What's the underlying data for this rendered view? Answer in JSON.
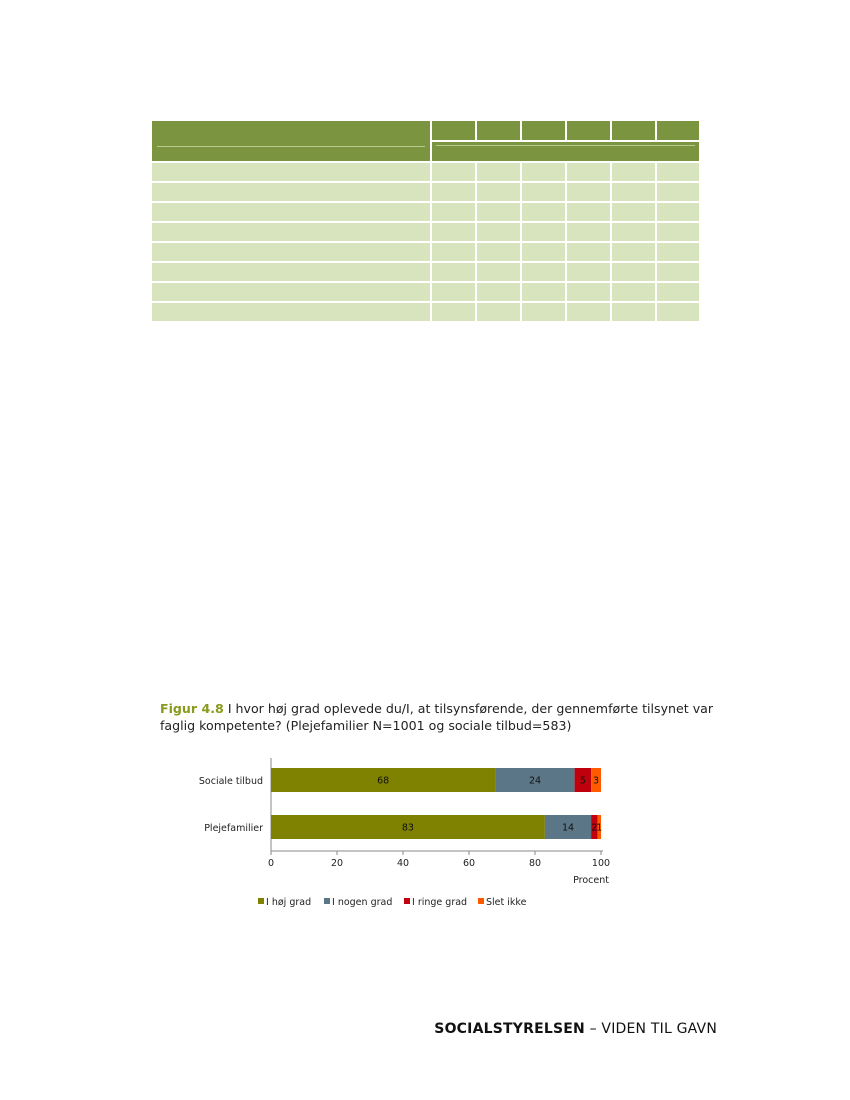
{
  "figure": {
    "label": "Figur 4.8",
    "caption": " I hvor høj grad oplevede du/I, at tilsynsførende, der gennemførte tilsynet var faglig kompetente? (Plejefamilier N=1001 og sociale tilbud=583)"
  },
  "chart_data": {
    "type": "bar",
    "orientation": "horizontal",
    "stacked": true,
    "categories": [
      "Sociale tilbud",
      "Plejefamilier"
    ],
    "series": [
      {
        "name": "I høj grad",
        "color": "#7f8200",
        "values": [
          68,
          83
        ]
      },
      {
        "name": "I nogen grad",
        "color": "#5b7686",
        "values": [
          24,
          14
        ]
      },
      {
        "name": "I ringe grad",
        "color": "#c0000c",
        "values": [
          5,
          2
        ]
      },
      {
        "name": "Slet ikke",
        "color": "#ff5a00",
        "values": [
          3,
          1
        ]
      }
    ],
    "xlim": [
      0,
      100
    ],
    "xticks": [
      "0",
      "20",
      "40",
      "60",
      "80",
      "100"
    ],
    "xlabel": "Procent",
    "legend": "bottom",
    "grid": false
  },
  "footer": {
    "bold": "SOCIALSTYRELSEN",
    "rest": " – VIDEN TIL GAVN"
  },
  "colors": {
    "table_header": "#7a9440",
    "table_cell": "#d8e4bd",
    "figure_label": "#8a9a1c"
  }
}
